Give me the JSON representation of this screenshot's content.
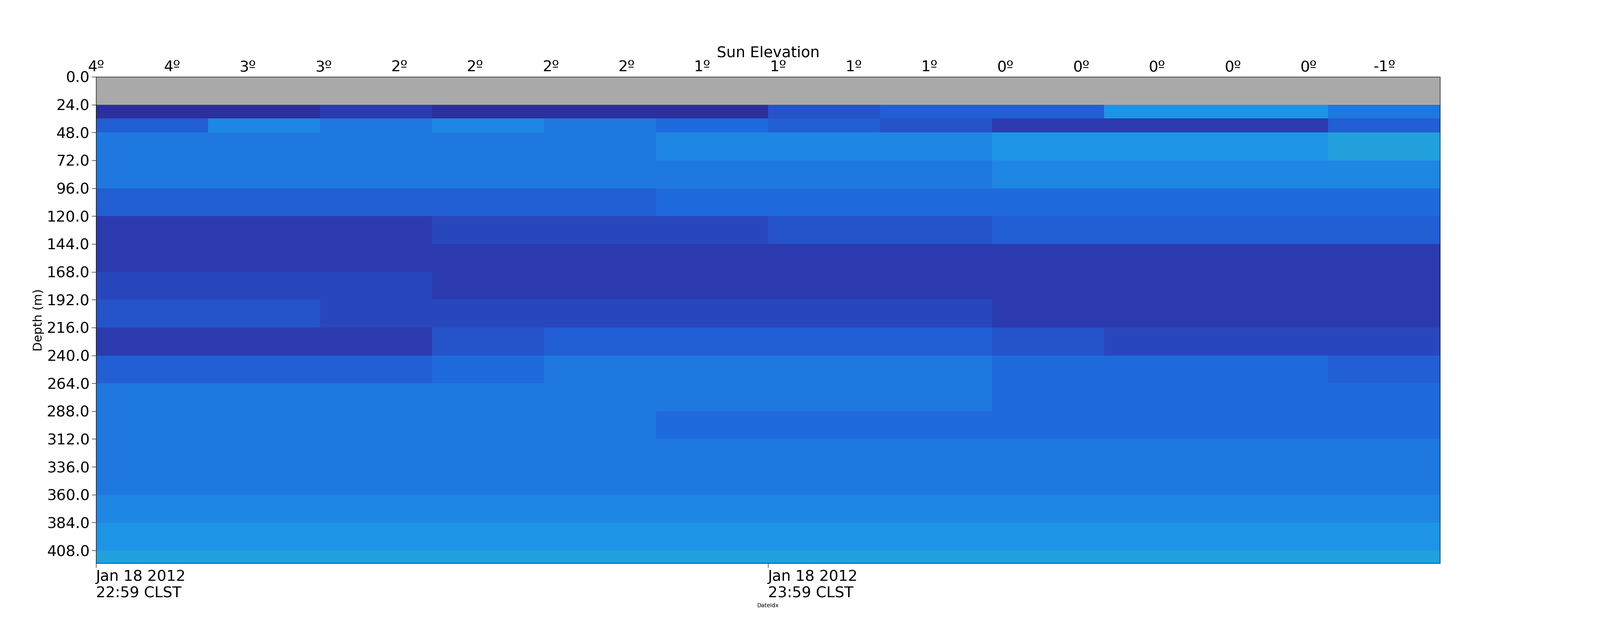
{
  "chart_data": {
    "type": "heatmap",
    "x_label": "DateIdx",
    "y_label": "Depth (m)",
    "x2_label": "Sun Elevation",
    "xlim": [
      0,
      120
    ],
    "xticks": [
      {
        "value": 0,
        "label": "Jan 18 2012\n22:59 CLST"
      },
      {
        "value": 60,
        "label": "Jan 18 2012\n23:59 CLST"
      }
    ],
    "x2ticks": [
      {
        "value": 0,
        "label": "4º"
      },
      {
        "value": 6.77,
        "label": "4º"
      },
      {
        "value": 13.53,
        "label": "3º"
      },
      {
        "value": 20.3,
        "label": "3º"
      },
      {
        "value": 27.06,
        "label": "2º"
      },
      {
        "value": 33.83,
        "label": "2º"
      },
      {
        "value": 40.6,
        "label": "2º"
      },
      {
        "value": 47.36,
        "label": "2º"
      },
      {
        "value": 54.13,
        "label": "1º"
      },
      {
        "value": 60.9,
        "label": "1º"
      },
      {
        "value": 67.66,
        "label": "1º"
      },
      {
        "value": 74.43,
        "label": "1º"
      },
      {
        "value": 81.2,
        "label": "0º"
      },
      {
        "value": 87.96,
        "label": "0º"
      },
      {
        "value": 94.73,
        "label": "0º"
      },
      {
        "value": 101.5,
        "label": "0º"
      },
      {
        "value": 108.26,
        "label": "0º"
      },
      {
        "value": 115.03,
        "label": "-1º"
      }
    ],
    "ylim": [
      419,
      0
    ],
    "yticks": [
      0.0,
      24.0,
      48.0,
      72.0,
      96.0,
      120.0,
      144.0,
      168.0,
      192.0,
      216.0,
      240.0,
      264.0,
      288.0,
      312.0,
      336.0,
      360.0,
      384.0,
      408.0
    ],
    "tick_labels": true,
    "grid": false,
    "x_edges": [
      0,
      10,
      20,
      30,
      40,
      50,
      60,
      70,
      80,
      90,
      100,
      110,
      120
    ],
    "y_edges": [
      24,
      36,
      48,
      72,
      96,
      120,
      144,
      168,
      192,
      216,
      240,
      264,
      288,
      312,
      336,
      360,
      384,
      408,
      419
    ],
    "color_scale": [
      0,
      10
    ],
    "cells": [
      [
        1.0,
        1.0,
        1.5,
        1.0,
        1.0,
        1.0,
        2.5,
        3.0,
        3.0,
        5.0,
        5.0,
        4.0
      ],
      [
        3.0,
        4.5,
        4.0,
        4.5,
        4.0,
        3.5,
        3.0,
        2.5,
        1.5,
        1.5,
        1.5,
        3.0
      ],
      [
        4.0,
        4.0,
        4.0,
        4.0,
        4.0,
        4.5,
        4.5,
        4.5,
        5.0,
        5.0,
        5.0,
        5.5
      ],
      [
        4.0,
        4.0,
        4.0,
        4.0,
        4.0,
        4.0,
        4.0,
        4.0,
        4.5,
        4.5,
        4.5,
        4.5
      ],
      [
        3.0,
        3.0,
        3.0,
        3.0,
        3.0,
        3.5,
        3.5,
        3.5,
        3.5,
        3.5,
        3.5,
        3.5
      ],
      [
        1.5,
        1.5,
        1.5,
        2.0,
        2.0,
        2.0,
        2.5,
        2.5,
        3.0,
        3.0,
        3.0,
        3.0
      ],
      [
        1.5,
        1.5,
        1.5,
        1.5,
        1.5,
        1.5,
        1.5,
        1.5,
        1.5,
        1.5,
        1.5,
        1.5
      ],
      [
        2.0,
        2.0,
        2.0,
        1.5,
        1.5,
        1.5,
        1.5,
        1.5,
        1.5,
        1.5,
        1.5,
        1.5
      ],
      [
        2.5,
        2.5,
        2.0,
        2.0,
        2.0,
        2.0,
        2.0,
        2.0,
        1.5,
        1.5,
        1.5,
        1.5
      ],
      [
        1.5,
        1.5,
        1.5,
        2.5,
        3.0,
        3.0,
        3.0,
        3.0,
        2.5,
        2.0,
        2.0,
        2.0
      ],
      [
        3.0,
        3.0,
        3.0,
        3.5,
        4.0,
        4.0,
        4.0,
        4.0,
        3.5,
        3.5,
        3.5,
        3.0
      ],
      [
        4.0,
        4.0,
        4.0,
        4.0,
        4.0,
        4.0,
        4.0,
        4.0,
        3.5,
        3.5,
        3.5,
        3.5
      ],
      [
        4.0,
        4.0,
        4.0,
        4.0,
        4.0,
        3.5,
        3.5,
        3.5,
        3.5,
        3.5,
        3.5,
        3.5
      ],
      [
        4.0,
        4.0,
        4.0,
        4.0,
        4.0,
        4.0,
        4.0,
        4.0,
        4.0,
        4.0,
        4.0,
        4.0
      ],
      [
        4.0,
        4.0,
        4.0,
        4.0,
        4.0,
        4.0,
        4.0,
        4.0,
        4.0,
        4.0,
        4.0,
        4.0
      ],
      [
        4.5,
        4.5,
        4.5,
        4.5,
        4.5,
        4.5,
        4.5,
        4.5,
        4.5,
        4.5,
        4.5,
        4.5
      ],
      [
        5.0,
        5.0,
        5.0,
        5.0,
        5.0,
        5.0,
        5.0,
        5.0,
        5.0,
        5.0,
        5.0,
        5.0
      ],
      [
        5.5,
        5.5,
        5.5,
        5.5,
        5.5,
        5.5,
        5.5,
        5.5,
        5.5,
        5.5,
        5.5,
        5.5
      ]
    ]
  }
}
